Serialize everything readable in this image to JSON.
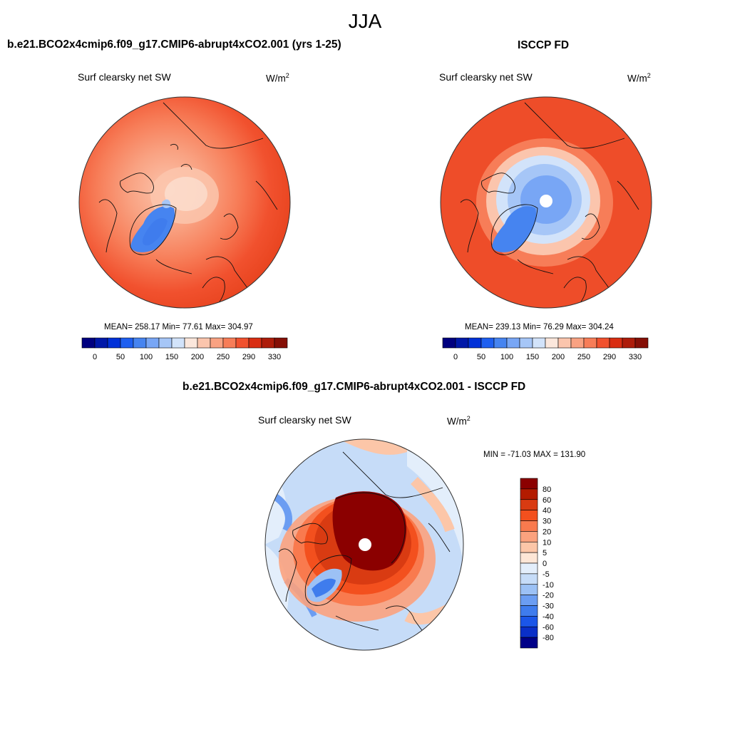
{
  "page_title": "JJA",
  "unit": {
    "base": "W/m",
    "exp": "2"
  },
  "variable": "Surf clearsky net SW",
  "panels": {
    "model": {
      "title": "b.e21.BCO2x4cmip6.f09_g17.CMIP6-abrupt4xCO2.001 (yrs 1-25)",
      "stats": "MEAN= 258.17  Min=  77.61  Max= 304.97"
    },
    "obs": {
      "title": "ISCCP FD",
      "stats": "MEAN= 239.13  Min=  76.29  Max= 304.24"
    },
    "diff": {
      "title": "b.e21.BCO2x4cmip6.f09_g17.CMIP6-abrupt4xCO2.001 - ISCCP FD",
      "stats": "MIN = -71.03 MAX = 131.90"
    }
  },
  "colorbars": {
    "abs": {
      "colors": [
        "#00007f",
        "#0018a8",
        "#0030d8",
        "#1e5ff0",
        "#4684f0",
        "#78a6f5",
        "#a6c6f7",
        "#d2e3fa",
        "#fbe7dc",
        "#fbc5ad",
        "#f9a282",
        "#f77d58",
        "#f1512e",
        "#d92d12",
        "#ad1c0a",
        "#850f06"
      ],
      "labels": [
        "0",
        "50",
        "100",
        "150",
        "200",
        "250",
        "290",
        "330"
      ]
    },
    "diff": {
      "colors": [
        "#8b0000",
        "#b31b00",
        "#d93b12",
        "#f3501e",
        "#f97a4e",
        "#fba27e",
        "#fcc6a8",
        "#fde6d6",
        "#e3eefb",
        "#c6dcf8",
        "#9cc1f5",
        "#6b9df2",
        "#3f7ced",
        "#1b56e8",
        "#0a2fc8",
        "#000088"
      ],
      "labels": [
        "80",
        "60",
        "40",
        "30",
        "20",
        "10",
        "5",
        "0",
        "-5",
        "-10",
        "-20",
        "-30",
        "-40",
        "-60",
        "-80"
      ]
    }
  }
}
